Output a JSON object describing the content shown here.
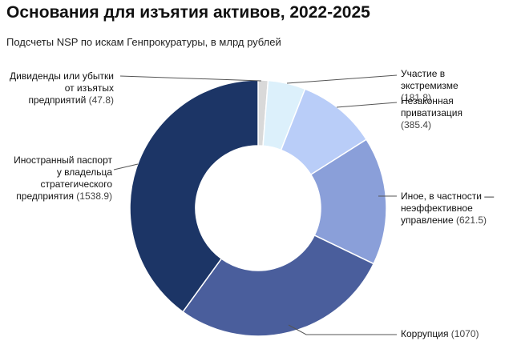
{
  "chart_data": {
    "type": "pie",
    "title": "Основания для изъятия активов, 2022-2025",
    "subtitle": "Подсчеты NSP по искам Генпрокуратуры, в млрд рублей",
    "categories": [
      "Дивиденды или убытки от изъятых предприятий",
      "Участие в экстремизме",
      "Незаконная приватизация",
      "Иное, в частности — неэффективное управление",
      "Коррупция",
      "Иностранный паспорт у владельца стратегического предприятия"
    ],
    "values": [
      47.8,
      181.8,
      385.4,
      621.5,
      1070,
      1538.9
    ],
    "value_labels": [
      "(47.8)",
      "(181.8)",
      "(385.4)",
      "(621.5)",
      "(1070)",
      "(1538.9)"
    ],
    "colors": [
      "#d9d9d9",
      "#dcf0fb",
      "#b9cdf8",
      "#8a9fd9",
      "#4a5e9c",
      "#1c3566"
    ],
    "donut": true
  }
}
